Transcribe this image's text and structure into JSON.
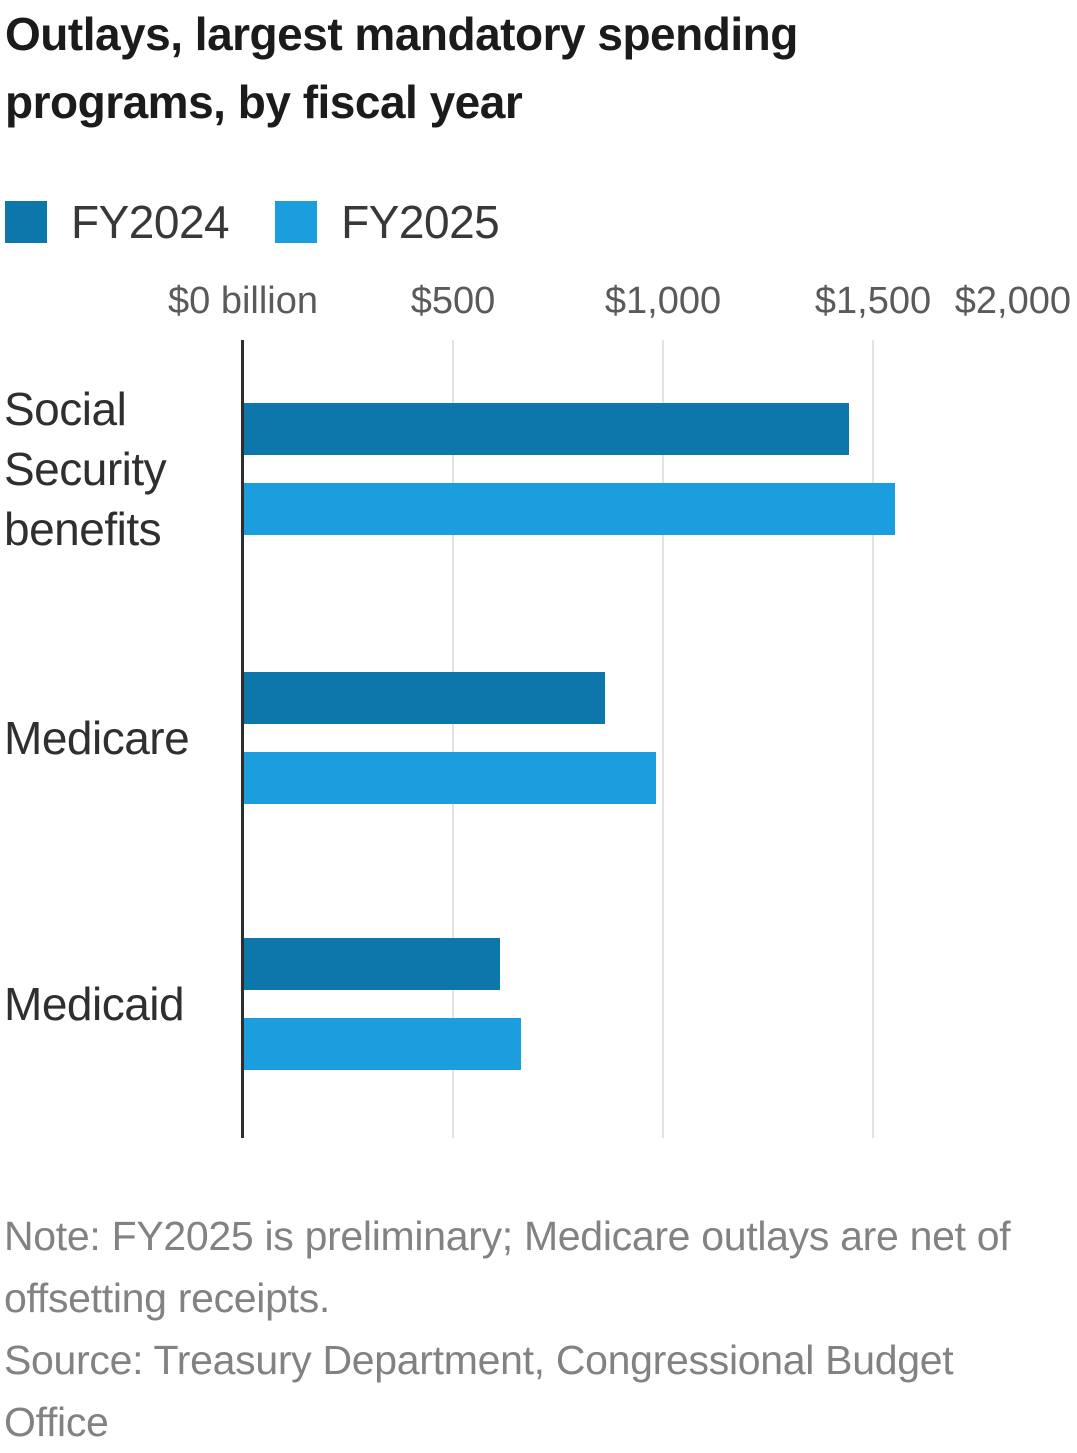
{
  "title": "Outlays, largest mandatory spending programs, by fiscal year",
  "note": "Note: FY2025 is preliminary; Medicare outlays are net of offsetting receipts.",
  "source": "Source: Treasury Department, Congressional Budget Office",
  "colors": {
    "fy2024": "#0d76ab",
    "fy2025": "#1c9dde",
    "axis": "#2e2e2e",
    "gridline": "#e3e3e3",
    "note_text": "#828282"
  },
  "chart_data": {
    "type": "bar",
    "orientation": "horizontal",
    "title": "Outlays, largest mandatory spending programs, by fiscal year",
    "unit": "USD billions",
    "categories": [
      "Social Security benefits",
      "Medicare",
      "Medicaid"
    ],
    "series": [
      {
        "name": "FY2024",
        "color": "#0d76ab",
        "values": [
          1440,
          860,
          610
        ]
      },
      {
        "name": "FY2025",
        "color": "#1c9dde",
        "values": [
          1550,
          980,
          660
        ]
      }
    ],
    "x_axis": {
      "ticks": [
        {
          "label": "$0 billion",
          "value": 0
        },
        {
          "label": "$500",
          "value": 500
        },
        {
          "label": "$1,000",
          "value": 1000
        },
        {
          "label": "$1,500",
          "value": 1500
        },
        {
          "label": "$2,000",
          "value": 2000
        }
      ],
      "lim": [
        0,
        2000
      ],
      "grid": true
    },
    "legend_position": "top-left"
  }
}
